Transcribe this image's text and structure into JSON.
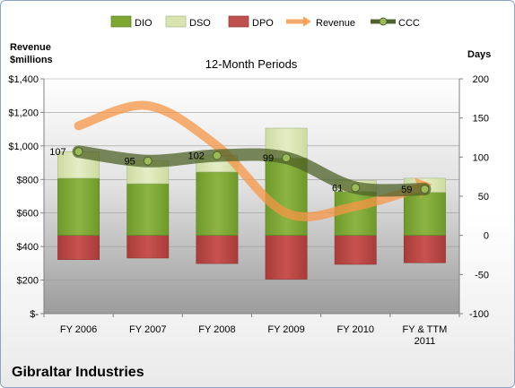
{
  "chart_data": {
    "type": "bar",
    "title": "12-Month Periods",
    "company": "Gibraltar Industries",
    "left_axis": {
      "label_line1": "Revenue",
      "label_line2": "$millions",
      "range": [
        0,
        1400
      ],
      "ticks": [
        0,
        200,
        400,
        600,
        800,
        1000,
        1200,
        1400
      ],
      "tick_labels": [
        "$-",
        "$200",
        "$400",
        "$600",
        "$800",
        "$1,000",
        "$1,200",
        "$1,400"
      ]
    },
    "right_axis": {
      "label": "Days",
      "range": [
        -100,
        200
      ],
      "ticks": [
        -100,
        -50,
        0,
        50,
        100,
        150,
        200
      ],
      "tick_labels": [
        "-100",
        "-50",
        "0",
        "50",
        "100",
        "150",
        "200"
      ]
    },
    "categories": [
      [
        "FY 2006"
      ],
      [
        "FY 2007"
      ],
      [
        "FY 2008"
      ],
      [
        "FY 2009"
      ],
      [
        "FY 2010"
      ],
      [
        "FY & TTM",
        "2011"
      ]
    ],
    "legend": [
      "DIO",
      "DSO",
      "DPO",
      "Revenue",
      "CCC"
    ],
    "series": [
      {
        "name": "DIO",
        "axis": "right",
        "color": "#7fa533",
        "values": [
          73,
          66,
          81,
          99,
          56,
          55
        ]
      },
      {
        "name": "DSO",
        "axis": "right",
        "color": "#d7e4b0",
        "values": [
          34,
          29,
          21,
          38,
          14,
          18
        ]
      },
      {
        "name": "DPO",
        "axis": "right",
        "color": "#c0504d",
        "values": [
          -31,
          -29,
          -36,
          -56,
          -37,
          -35
        ]
      },
      {
        "name": "Revenue",
        "axis": "left",
        "color": "#f79646",
        "values": [
          1120,
          1240,
          1000,
          600,
          640,
          760
        ]
      },
      {
        "name": "CCC",
        "axis": "right",
        "color": "#4f6228",
        "values": [
          107,
          95,
          102,
          99,
          61,
          59
        ]
      }
    ],
    "ccc_labels": [
      "107",
      "95",
      "102",
      "99",
      "61",
      "59"
    ]
  }
}
